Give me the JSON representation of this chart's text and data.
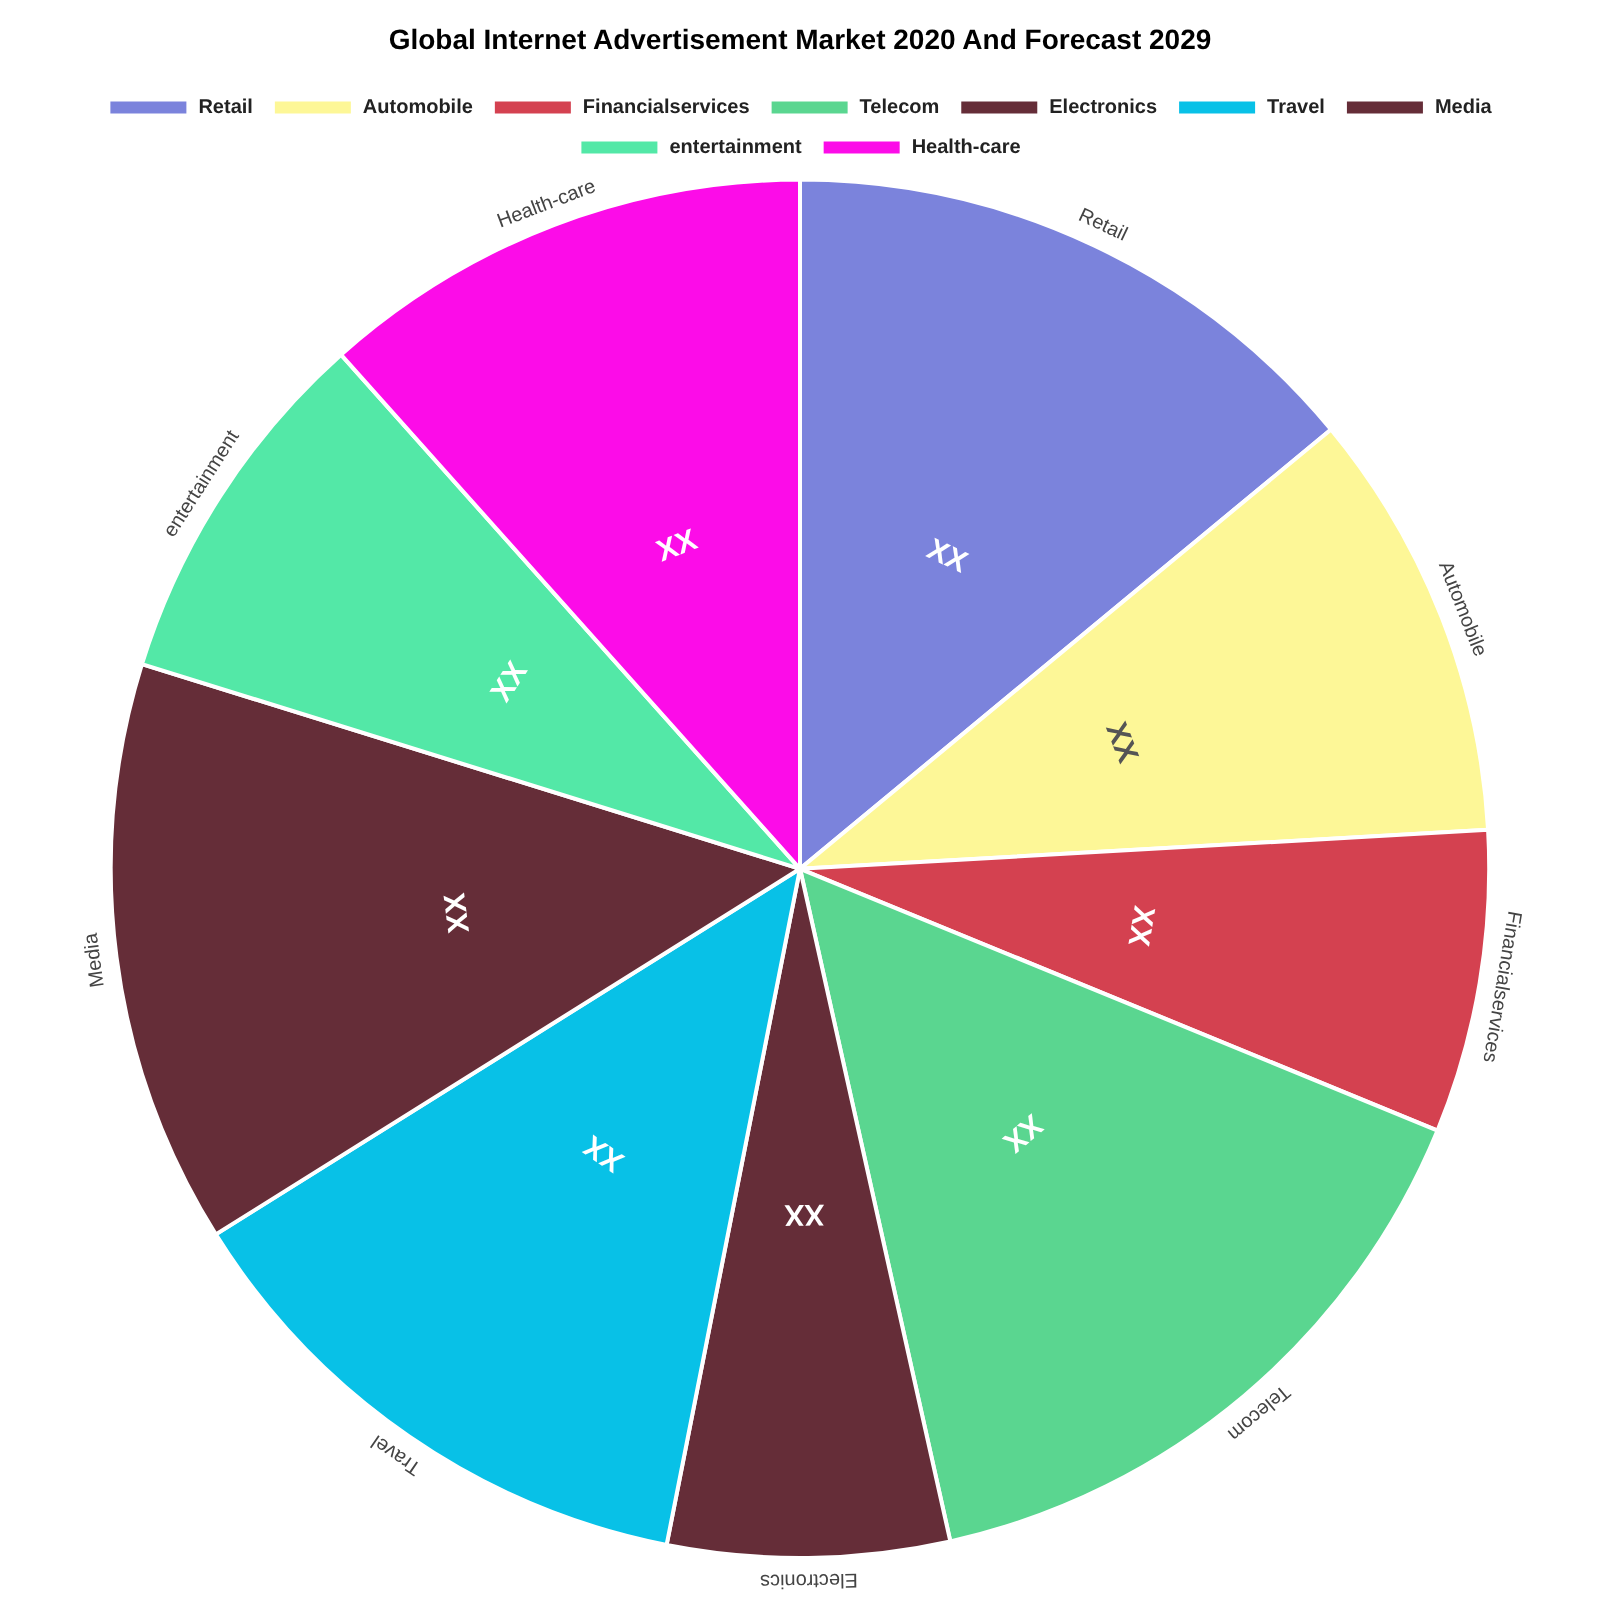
{
  "chart_data": {
    "type": "pie",
    "title": "Global Internet Advertisement Market 2020 And Forecast 2029",
    "categories": [
      "Retail",
      "Automobile",
      "Financialservices",
      "Telecom",
      "Electronics",
      "Travel",
      "Media",
      "entertainment",
      "Health-care"
    ],
    "values": [
      14.0,
      10.1,
      7.1,
      15.3,
      6.6,
      13.0,
      13.7,
      8.6,
      11.6
    ],
    "colors": [
      "#7b83dc",
      "#fdf797",
      "#d44150",
      "#5ad690",
      "#652d38",
      "#08c1e7",
      "#652d38",
      "#53e8a7",
      "#fc0ce8"
    ],
    "value_labels": [
      "XX",
      "XX",
      "XX",
      "XX",
      "XX",
      "XX",
      "XX",
      "XX",
      "XX"
    ],
    "legend": "top"
  }
}
